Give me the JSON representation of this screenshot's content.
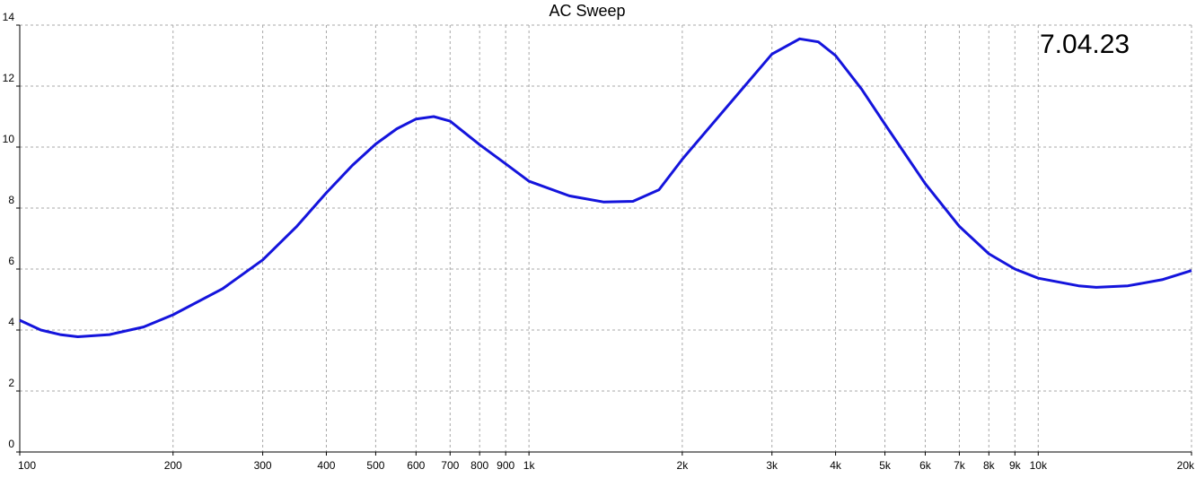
{
  "chart_data": {
    "type": "line",
    "title": "AC Sweep",
    "annotation": "7.04.23",
    "x_scale": "log",
    "grid": true,
    "xlim": [
      100,
      20000
    ],
    "ylim": [
      0,
      14
    ],
    "xticks": [
      100,
      200,
      300,
      400,
      500,
      600,
      700,
      800,
      900,
      {
        "value": 1000,
        "label": "1k"
      },
      {
        "value": 2000,
        "label": "2k"
      },
      {
        "value": 3000,
        "label": "3k"
      },
      {
        "value": 4000,
        "label": "4k"
      },
      {
        "value": 5000,
        "label": "5k"
      },
      {
        "value": 6000,
        "label": "6k"
      },
      {
        "value": 7000,
        "label": "7k"
      },
      {
        "value": 8000,
        "label": "8k"
      },
      {
        "value": 9000,
        "label": "9k"
      },
      {
        "value": 10000,
        "label": "10k"
      },
      {
        "value": 20000,
        "label": "20k"
      }
    ],
    "yticks": [
      0,
      2,
      4,
      6,
      8,
      10,
      12,
      14
    ],
    "x": [
      100,
      110,
      120,
      130,
      150,
      175,
      200,
      250,
      300,
      350,
      400,
      450,
      500,
      550,
      600,
      650,
      700,
      800,
      900,
      1000,
      1200,
      1400,
      1600,
      1800,
      2000,
      2500,
      3000,
      3400,
      3700,
      4000,
      4500,
      5000,
      6000,
      7000,
      8000,
      9000,
      10000,
      12000,
      13000,
      15000,
      17500,
      20000
    ],
    "series": [
      {
        "color": "#1414dc",
        "values": [
          4.32,
          4.0,
          3.85,
          3.78,
          3.85,
          4.1,
          4.5,
          5.35,
          6.3,
          7.4,
          8.5,
          9.4,
          10.1,
          10.6,
          10.92,
          11.0,
          10.85,
          10.08,
          9.45,
          8.88,
          8.4,
          8.2,
          8.22,
          8.6,
          9.6,
          11.5,
          13.05,
          13.55,
          13.45,
          13.0,
          11.9,
          10.75,
          8.8,
          7.4,
          6.5,
          6.0,
          5.7,
          5.45,
          5.4,
          5.45,
          5.65,
          5.95
        ]
      }
    ]
  }
}
